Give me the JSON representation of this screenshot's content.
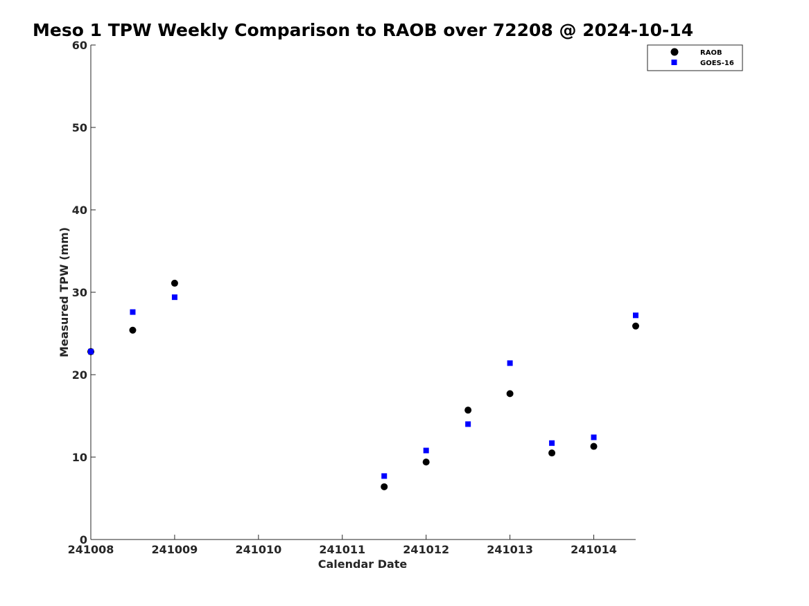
{
  "chart_data": {
    "type": "scatter",
    "title": "Meso 1 TPW Weekly Comparison to RAOB over 72208 @ 2024-10-14",
    "xlabel": "Calendar Date",
    "ylabel": "Measured TPW (mm)",
    "x_ticks": [
      "241008",
      "241009",
      "241010",
      "241011",
      "241012",
      "241013",
      "241014"
    ],
    "y_ticks": [
      "0",
      "10",
      "20",
      "30",
      "40",
      "50",
      "60"
    ],
    "xlim": [
      "2024-10-08 00:00",
      "2024-10-14 12:00"
    ],
    "ylim": [
      0,
      60
    ],
    "grid": false,
    "legend_position": "top-right",
    "series": [
      {
        "name": "RAOB",
        "marker": "circle",
        "color": "#000000",
        "points": [
          {
            "x": "2024-10-08 00:00",
            "y": 22.8
          },
          {
            "x": "2024-10-08 12:00",
            "y": 25.4
          },
          {
            "x": "2024-10-09 00:00",
            "y": 31.1
          },
          {
            "x": "2024-10-11 12:00",
            "y": 6.4
          },
          {
            "x": "2024-10-12 00:00",
            "y": 9.4
          },
          {
            "x": "2024-10-12 12:00",
            "y": 15.7
          },
          {
            "x": "2024-10-13 00:00",
            "y": 17.7
          },
          {
            "x": "2024-10-13 12:00",
            "y": 10.5
          },
          {
            "x": "2024-10-14 00:00",
            "y": 11.3
          },
          {
            "x": "2024-10-14 12:00",
            "y": 25.9
          }
        ]
      },
      {
        "name": "GOES-16",
        "marker": "square",
        "color": "#0000ff",
        "points": [
          {
            "x": "2024-10-08 00:00",
            "y": 22.8
          },
          {
            "x": "2024-10-08 12:00",
            "y": 27.6
          },
          {
            "x": "2024-10-09 00:00",
            "y": 29.4
          },
          {
            "x": "2024-10-11 12:00",
            "y": 7.7
          },
          {
            "x": "2024-10-12 00:00",
            "y": 10.8
          },
          {
            "x": "2024-10-12 12:00",
            "y": 14.0
          },
          {
            "x": "2024-10-13 00:00",
            "y": 21.4
          },
          {
            "x": "2024-10-13 12:00",
            "y": 11.7
          },
          {
            "x": "2024-10-14 00:00",
            "y": 12.4
          },
          {
            "x": "2024-10-14 12:00",
            "y": 27.2
          }
        ]
      }
    ]
  }
}
